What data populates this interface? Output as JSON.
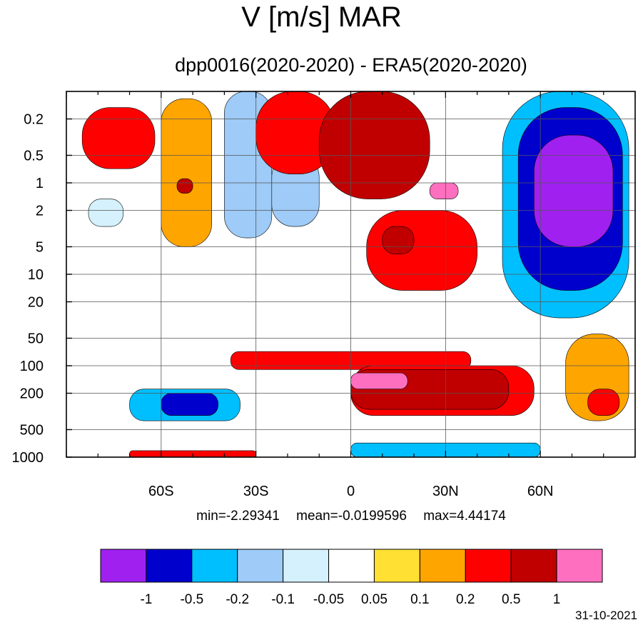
{
  "chart_data": {
    "type": "heatmap",
    "title": "V [m/s] MAR",
    "subtitle": "dpp0016(2020-2020) - ERA5(2020-2020)",
    "xlabel": "",
    "ylabel": "",
    "x_ticks": [
      "60S",
      "30S",
      "0",
      "30N",
      "60N"
    ],
    "x_tick_values": [
      -60,
      -30,
      0,
      30,
      60
    ],
    "xlim": [
      -90,
      90
    ],
    "y_scale": "log",
    "y_direction": "pressure decreasing upward",
    "y_ticks": [
      "0.2",
      "0.5",
      "1",
      "2",
      "5",
      "10",
      "20",
      "50",
      "100",
      "200",
      "500",
      "1000"
    ],
    "y_tick_values": [
      0.2,
      0.5,
      1,
      2,
      5,
      10,
      20,
      50,
      100,
      200,
      500,
      1000
    ],
    "ylim": [
      1000,
      0.1
    ],
    "grid": true,
    "contour_levels": [
      "-1",
      "-0.5",
      "-0.2",
      "-0.1",
      "-0.05",
      "0.05",
      "0.1",
      "0.2",
      "0.5",
      "1"
    ],
    "colorbar_colors": [
      "#a020f0",
      "#0000cd",
      "#00bfff",
      "#9ecbf7",
      "#d4f1fd",
      "#ffffff",
      "#ffe033",
      "#ffa500",
      "#ff0000",
      "#c00000",
      "#ff6fbf"
    ],
    "regions": [
      {
        "lat": [
          -85,
          -62
        ],
        "p": [
          0.15,
          0.7
        ],
        "value": 0.3
      },
      {
        "lat": [
          -60,
          -44
        ],
        "p": [
          0.12,
          5
        ],
        "value": 0.12
      },
      {
        "lat": [
          -55,
          -50
        ],
        "p": [
          0.9,
          1.3
        ],
        "value": 0.6
      },
      {
        "lat": [
          -83,
          -72
        ],
        "p": [
          1.5,
          3
        ],
        "value": -0.07
      },
      {
        "lat": [
          -40,
          -25
        ],
        "p": [
          0.1,
          4
        ],
        "value": -0.12
      },
      {
        "lat": [
          -25,
          -10
        ],
        "p": [
          0.5,
          3
        ],
        "value": -0.15
      },
      {
        "lat": [
          -30,
          -5
        ],
        "p": [
          0.1,
          0.8
        ],
        "value": 0.3
      },
      {
        "lat": [
          -10,
          25
        ],
        "p": [
          0.1,
          1.5
        ],
        "value": 0.6
      },
      {
        "lat": [
          5,
          40
        ],
        "p": [
          2,
          15
        ],
        "value": 0.3
      },
      {
        "lat": [
          10,
          20
        ],
        "p": [
          3,
          6
        ],
        "value": 0.6
      },
      {
        "lat": [
          25,
          34
        ],
        "p": [
          1,
          1.5
        ],
        "value": 1.2
      },
      {
        "lat": [
          48,
          88
        ],
        "p": [
          0.1,
          30
        ],
        "value": -0.3
      },
      {
        "lat": [
          53,
          86
        ],
        "p": [
          0.15,
          15
        ],
        "value": -0.6
      },
      {
        "lat": [
          58,
          83
        ],
        "p": [
          0.3,
          5
        ],
        "value": -1.5
      },
      {
        "lat": [
          -38,
          38
        ],
        "p": [
          70,
          110
        ],
        "value": 0.3
      },
      {
        "lat": [
          0,
          58
        ],
        "p": [
          100,
          350
        ],
        "value": 0.3
      },
      {
        "lat": [
          0,
          50
        ],
        "p": [
          110,
          300
        ],
        "value": 0.6
      },
      {
        "lat": [
          0,
          18
        ],
        "p": [
          120,
          180
        ],
        "value": 1.3
      },
      {
        "lat": [
          -70,
          -35
        ],
        "p": [
          180,
          400
        ],
        "value": -0.3
      },
      {
        "lat": [
          -60,
          -42
        ],
        "p": [
          200,
          350
        ],
        "value": -0.7
      },
      {
        "lat": [
          68,
          88
        ],
        "p": [
          45,
          400
        ],
        "value": 0.15
      },
      {
        "lat": [
          75,
          85
        ],
        "p": [
          180,
          350
        ],
        "value": 0.3
      },
      {
        "lat": [
          -70,
          -30
        ],
        "p": [
          850,
          1000
        ],
        "value": 0.3
      },
      {
        "lat": [
          0,
          60
        ],
        "p": [
          700,
          1000
        ],
        "value": -0.3
      }
    ]
  },
  "stats": {
    "min": "min=-2.29341",
    "mean": "mean=-0.0199596",
    "max": "max=4.44174"
  },
  "date": "31-10-2021"
}
